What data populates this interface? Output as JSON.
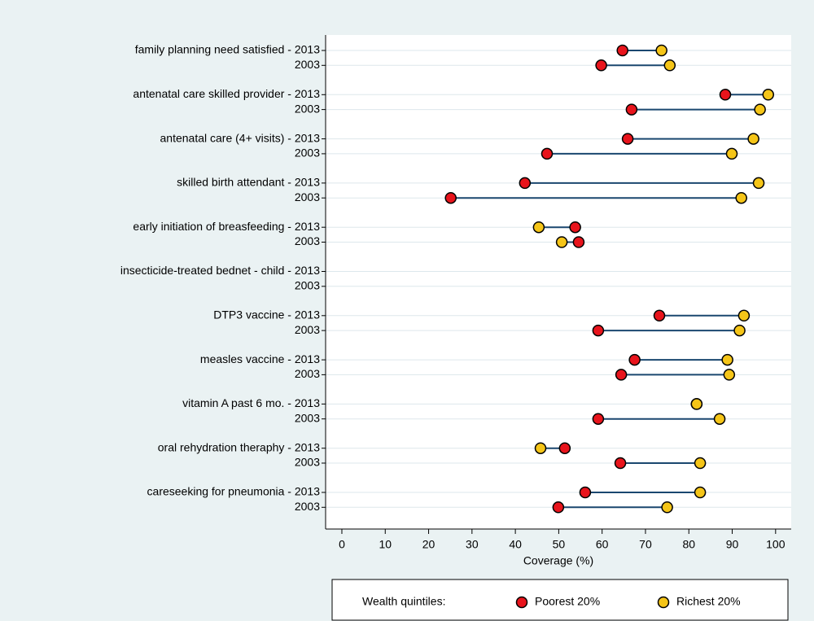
{
  "chart_data": {
    "type": "dumbbell",
    "categories": [
      "family planning need satisfied - 2013",
      "2003",
      "antenatal care skilled provider - 2013",
      "2003",
      "antenatal care (4+ visits) - 2013",
      "2003",
      "skilled birth attendant - 2013",
      "2003",
      "early initiation of breasfeeding - 2013",
      "2003",
      "insecticide-treated bednet - child - 2013",
      "2003",
      "DTP3 vaccine - 2013",
      "2003",
      "measles vaccine - 2013",
      "2003",
      "vitamin A past 6 mo. - 2013",
      "2003",
      "oral rehydration theraphy - 2013",
      "2003",
      "careseeking for pneumonia - 2013",
      "2003"
    ],
    "series": [
      {
        "name": "Poorest 20%",
        "color": "#e8141c",
        "values": [
          64.7,
          59.8,
          88.4,
          66.8,
          65.9,
          47.3,
          42.2,
          25.1,
          53.8,
          54.6,
          null,
          null,
          73.2,
          59.1,
          67.5,
          64.4,
          81.8,
          59.1,
          51.4,
          64.2,
          56.1,
          49.9
        ]
      },
      {
        "name": "Richest 20%",
        "color": "#f5c518",
        "values": [
          73.7,
          75.6,
          98.3,
          96.4,
          94.9,
          89.9,
          96.1,
          92.1,
          45.4,
          50.7,
          null,
          null,
          92.7,
          91.7,
          88.9,
          89.3,
          81.8,
          87.1,
          45.8,
          82.6,
          82.6,
          75.0
        ]
      }
    ],
    "line_color": "#1a476f",
    "xlabel": "Coverage (%)",
    "xlim": [
      -3.75,
      103.6
    ],
    "xticks": [
      0,
      10,
      20,
      30,
      40,
      50,
      60,
      70,
      80,
      90,
      100
    ],
    "grid": true,
    "legend_title": "Wealth quintiles:",
    "legend": "bottom"
  }
}
